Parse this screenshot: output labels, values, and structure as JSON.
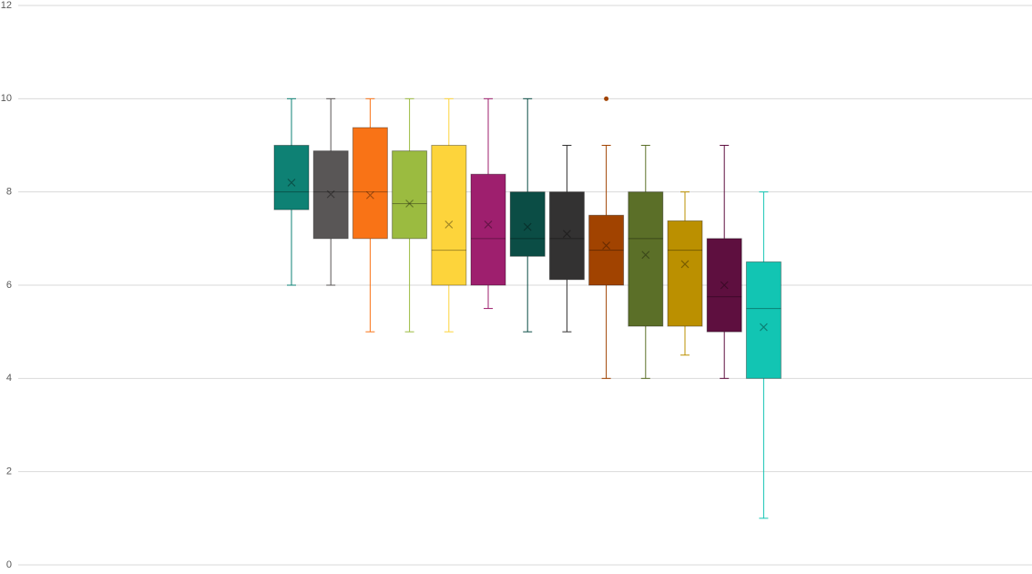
{
  "chart_data": {
    "type": "box",
    "ylim": [
      0,
      12
    ],
    "yticks": [
      0,
      2,
      4,
      6,
      8,
      10,
      12
    ],
    "grid": true,
    "series": [
      {
        "color": "#0e8174",
        "min": 6,
        "q1": 7.62,
        "median": 8,
        "q3": 9,
        "max": 10,
        "mean": 8.2
      },
      {
        "color": "#595656",
        "min": 6,
        "q1": 7,
        "median": 8,
        "q3": 8.88,
        "max": 10,
        "mean": 7.95
      },
      {
        "color": "#f97316",
        "min": 5,
        "q1": 7,
        "median": 8,
        "q3": 9.38,
        "max": 10,
        "mean": 7.93
      },
      {
        "color": "#9bbb40",
        "min": 5,
        "q1": 7,
        "median": 7.75,
        "q3": 8.88,
        "max": 10,
        "mean": 7.75
      },
      {
        "color": "#fdd43b",
        "min": 5,
        "q1": 6,
        "median": 6.75,
        "q3": 9,
        "max": 10,
        "mean": 7.3
      },
      {
        "color": "#9e1f6e",
        "min": 5.5,
        "q1": 6,
        "median": 7,
        "q3": 8.38,
        "max": 10,
        "mean": 7.3
      },
      {
        "color": "#0b4d45",
        "min": 5,
        "q1": 6.62,
        "median": 7,
        "q3": 8,
        "max": 10,
        "mean": 7.25
      },
      {
        "color": "#333232",
        "min": 5,
        "q1": 6.12,
        "median": 7,
        "q3": 8,
        "max": 9,
        "mean": 7.1
      },
      {
        "color": "#a14300",
        "min": 4,
        "q1": 6,
        "median": 6.75,
        "q3": 7.5,
        "max": 9,
        "mean": 6.85,
        "outliers": [
          10
        ]
      },
      {
        "color": "#5b6f28",
        "min": 4,
        "q1": 5.12,
        "median": 7,
        "q3": 8,
        "max": 9,
        "mean": 6.65
      },
      {
        "color": "#bb9000",
        "min": 4.5,
        "q1": 5.12,
        "median": 6.75,
        "q3": 7.38,
        "max": 8,
        "mean": 6.45
      },
      {
        "color": "#5e0f3f",
        "min": 4,
        "q1": 5,
        "median": 5.75,
        "q3": 7,
        "max": 9,
        "mean": 6
      },
      {
        "color": "#12c5b3",
        "min": 1,
        "q1": 4,
        "median": 5.5,
        "q3": 6.5,
        "max": 8,
        "mean": 5.1
      }
    ]
  }
}
